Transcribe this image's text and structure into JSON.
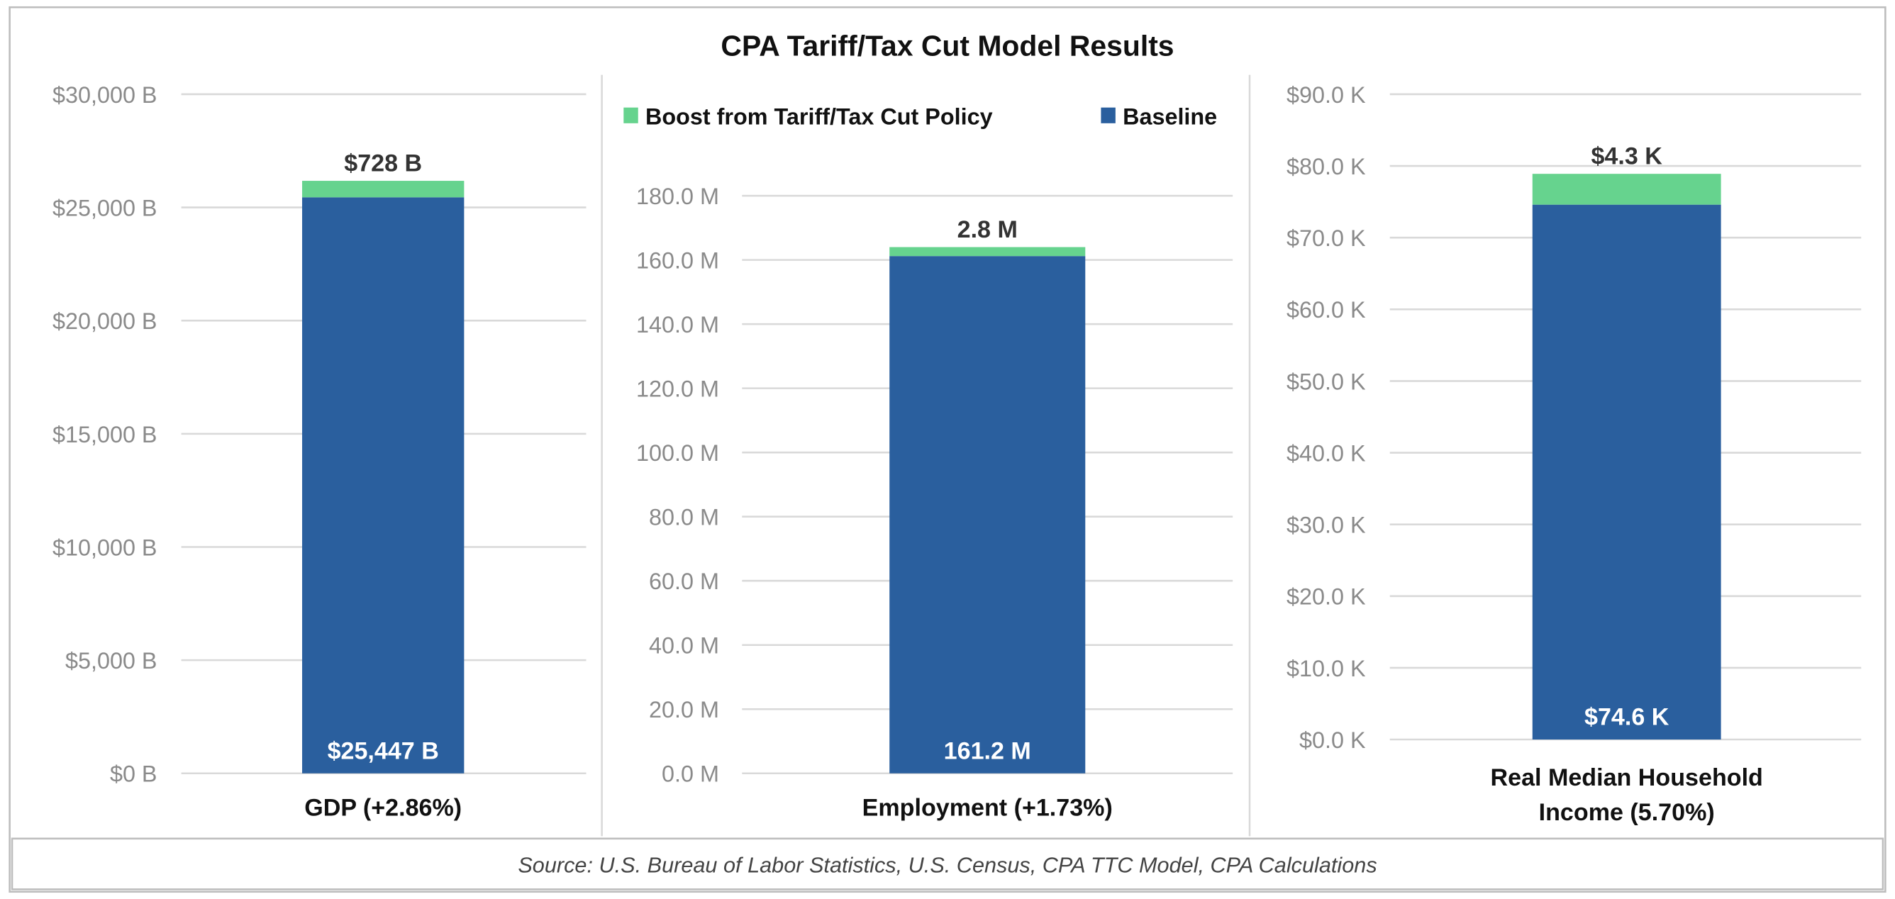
{
  "title": "CPA Tariff/Tax Cut Model Results",
  "source": "Source: U.S. Bureau of Labor Statistics, U.S. Census, CPA TTC Model, CPA Calculations",
  "colors": {
    "baseline": "#2a5f9e",
    "boost": "#66d38e"
  },
  "legend": {
    "position": "top",
    "items": [
      {
        "label": "Boost from Tariff/Tax Cut Policy",
        "color": "#66d38e"
      },
      {
        "label": "Baseline",
        "color": "#2a5f9e"
      }
    ]
  },
  "chart_data": [
    {
      "type": "bar",
      "stacked": true,
      "categories": [
        "GDP (+2.86%)"
      ],
      "series": [
        {
          "name": "Baseline",
          "values": [
            25447
          ],
          "data_labels": [
            "$25,447 B"
          ]
        },
        {
          "name": "Boost from Tariff/Tax Cut Policy",
          "values": [
            728
          ],
          "data_labels": [
            "$728 B"
          ]
        }
      ],
      "ylim": [
        0,
        30000
      ],
      "yticks": [
        "$0 B",
        "$5,000 B",
        "$10,000 B",
        "$15,000 B",
        "$20,000 B",
        "$25,000 B",
        "$30,000 B"
      ],
      "grid": true
    },
    {
      "type": "bar",
      "stacked": true,
      "categories": [
        "Employment (+1.73%)"
      ],
      "series": [
        {
          "name": "Baseline",
          "values": [
            161.2
          ],
          "data_labels": [
            "161.2 M"
          ]
        },
        {
          "name": "Boost from Tariff/Tax Cut Policy",
          "values": [
            2.8
          ],
          "data_labels": [
            "2.8 M"
          ]
        }
      ],
      "ylim": [
        0,
        180
      ],
      "yticks": [
        "0.0 M",
        "20.0 M",
        "40.0 M",
        "60.0 M",
        "80.0 M",
        "100.0 M",
        "120.0 M",
        "140.0 M",
        "160.0 M",
        "180.0 M"
      ],
      "grid": true
    },
    {
      "type": "bar",
      "stacked": true,
      "categories": [
        "Real Median Household Income (5.70%)"
      ],
      "category_lines": [
        "Real Median Household",
        "Income (5.70%)"
      ],
      "series": [
        {
          "name": "Baseline",
          "values": [
            74.6
          ],
          "data_labels": [
            "$74.6 K"
          ]
        },
        {
          "name": "Boost from Tariff/Tax Cut Policy",
          "values": [
            4.3
          ],
          "data_labels": [
            "$4.3 K"
          ]
        }
      ],
      "ylim": [
        0,
        90
      ],
      "yticks": [
        "$0.0 K",
        "$10.0 K",
        "$20.0 K",
        "$30.0 K",
        "$40.0 K",
        "$50.0 K",
        "$60.0 K",
        "$70.0 K",
        "$80.0 K",
        "$90.0 K"
      ],
      "grid": true
    }
  ]
}
